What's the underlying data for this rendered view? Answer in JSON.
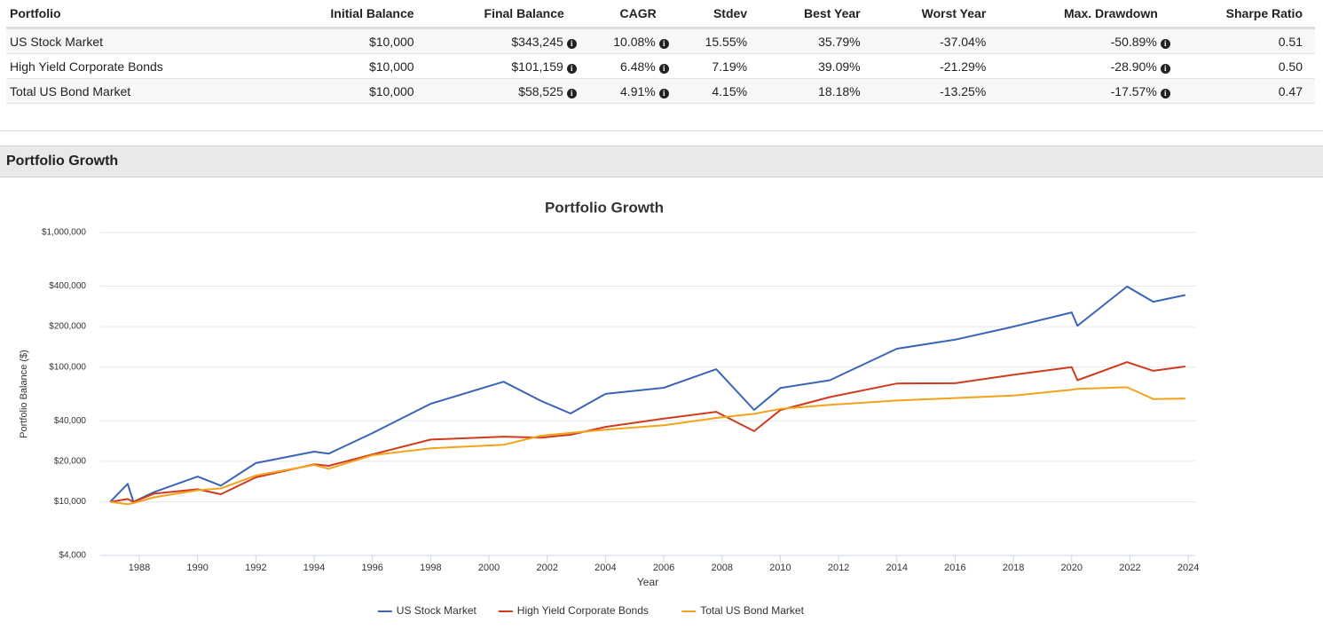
{
  "table": {
    "headers": [
      "Portfolio",
      "Initial Balance",
      "Final Balance",
      "CAGR",
      "Stdev",
      "Best Year",
      "Worst Year",
      "Max. Drawdown",
      "Sharpe Ratio"
    ],
    "rows": [
      [
        "US Stock Market",
        "$10,000",
        "$343,245",
        "10.08%",
        "15.55%",
        "35.79%",
        "-37.04%",
        "-50.89%",
        "0.51"
      ],
      [
        "High Yield Corporate Bonds",
        "$10,000",
        "$101,159",
        "6.48%",
        "7.19%",
        "39.09%",
        "-21.29%",
        "-28.90%",
        "0.50"
      ],
      [
        "Total US Bond Market",
        "$10,000",
        "$58,525",
        "4.91%",
        "4.15%",
        "18.18%",
        "-13.25%",
        "-17.57%",
        "0.47"
      ]
    ]
  },
  "section_title": "Portfolio Growth",
  "chart_data": {
    "type": "line",
    "title": "Portfolio Growth",
    "x_label": "Year",
    "y_label": "Portfolio Balance ($)",
    "yscale": "log",
    "grid": true,
    "legend": "bottom",
    "x": [
      1987,
      1987.6,
      1987.8,
      1988.5,
      1990,
      1990.8,
      1992,
      1994,
      1994.5,
      1996,
      1998,
      2000.5,
      2001.8,
      2002.8,
      2004,
      2006,
      2007.8,
      2009.1,
      2010,
      2011.7,
      2014,
      2016,
      2018,
      2020,
      2020.2,
      2021.9,
      2022.8,
      2023.9
    ],
    "series": [
      {
        "name": "US Stock Market",
        "color": "#3a64b5",
        "values": [
          10000,
          13600,
          10000,
          11800,
          15400,
          13200,
          19400,
          23600,
          22800,
          32400,
          53500,
          78000,
          56000,
          45300,
          63300,
          70300,
          96600,
          48100,
          70000,
          80000,
          137000,
          160000,
          200000,
          255000,
          203000,
          397000,
          306000,
          343245
        ]
      },
      {
        "name": "High Yield Corporate Bonds",
        "color": "#cf3b1f",
        "values": [
          10000,
          10500,
          10000,
          11500,
          12400,
          11400,
          15200,
          19000,
          18500,
          22500,
          29000,
          30500,
          30000,
          31500,
          36000,
          41500,
          46600,
          33500,
          48000,
          60000,
          75600,
          76000,
          87800,
          100000,
          80000,
          109000,
          94000,
          101159
        ]
      },
      {
        "name": "Total US Bond Market",
        "color": "#f4a21c",
        "values": [
          10000,
          9600,
          9800,
          10800,
          12200,
          12600,
          15700,
          18800,
          17600,
          22200,
          25000,
          26500,
          31000,
          32500,
          34300,
          37000,
          42000,
          45000,
          49000,
          52500,
          56500,
          59000,
          61500,
          68000,
          69000,
          71000,
          58000,
          58525
        ]
      }
    ],
    "xlim": [
      1986.66,
      2024.24
    ],
    "xticks": [
      1988,
      1990,
      1992,
      1994,
      1996,
      1998,
      2000,
      2002,
      2004,
      2006,
      2008,
      2010,
      2012,
      2014,
      2016,
      2018,
      2020,
      2022,
      2024
    ],
    "ylim": [
      4000,
      1000000
    ],
    "yticks": [
      {
        "value": 4000,
        "label": "$4,000"
      },
      {
        "value": 10000,
        "label": "$10,000"
      },
      {
        "value": 20000,
        "label": "$20,000"
      },
      {
        "value": 40000,
        "label": "$40,000"
      },
      {
        "value": 100000,
        "label": "$100,000"
      },
      {
        "value": 200000,
        "label": "$200,000"
      },
      {
        "value": 400000,
        "label": "$400,000"
      },
      {
        "value": 1000000,
        "label": "$1,000,000"
      }
    ]
  }
}
